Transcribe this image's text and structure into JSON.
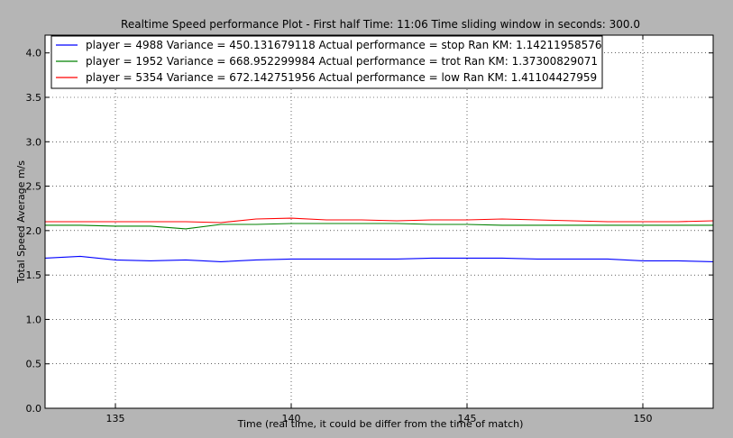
{
  "chart_data": {
    "type": "line",
    "title": "Realtime Speed performance Plot - First half Time: 11:06 Time sliding window in seconds: 300.0",
    "xlabel": "Time (real time, it could be differ from the time of match)",
    "ylabel": "Total Speed Average m/s",
    "xlim": [
      133,
      152
    ],
    "ylim": [
      0,
      4.2
    ],
    "xticks": [
      135,
      140,
      145,
      150
    ],
    "yticks": [
      0.0,
      0.5,
      1.0,
      1.5,
      2.0,
      2.5,
      3.0,
      3.5,
      4.0
    ],
    "xtick_labels": [
      "135",
      "140",
      "145",
      "150"
    ],
    "ytick_labels": [
      "0.0",
      "0.5",
      "1.0",
      "1.5",
      "2.0",
      "2.5",
      "3.0",
      "3.5",
      "4.0"
    ],
    "grid": true,
    "legend_position": "top-left",
    "series": [
      {
        "name": "player = 4988 Variance = 450.131679118 Actual performance = stop Ran KM: 1.14211958576",
        "color": "#0000ff",
        "x": [
          133,
          134,
          135,
          136,
          137,
          138,
          139,
          140,
          141,
          142,
          143,
          144,
          145,
          146,
          147,
          148,
          149,
          150,
          151,
          152
        ],
        "y": [
          1.69,
          1.71,
          1.67,
          1.66,
          1.67,
          1.65,
          1.67,
          1.68,
          1.68,
          1.68,
          1.68,
          1.69,
          1.69,
          1.69,
          1.68,
          1.68,
          1.68,
          1.66,
          1.66,
          1.65
        ]
      },
      {
        "name": "player = 1952 Variance = 668.952299984 Actual performance = trot Ran KM: 1.37300829071",
        "color": "#008000",
        "x": [
          133,
          134,
          135,
          136,
          137,
          138,
          139,
          140,
          141,
          142,
          143,
          144,
          145,
          146,
          147,
          148,
          149,
          150,
          151,
          152
        ],
        "y": [
          2.06,
          2.06,
          2.05,
          2.05,
          2.02,
          2.07,
          2.07,
          2.08,
          2.08,
          2.08,
          2.08,
          2.07,
          2.07,
          2.06,
          2.06,
          2.06,
          2.06,
          2.06,
          2.06,
          2.06
        ]
      },
      {
        "name": "player = 5354 Variance = 672.142751956 Actual performance = low Ran KM: 1.41104427959",
        "color": "#ff0000",
        "x": [
          133,
          134,
          135,
          136,
          137,
          138,
          139,
          140,
          141,
          142,
          143,
          144,
          145,
          146,
          147,
          148,
          149,
          150,
          151,
          152
        ],
        "y": [
          2.1,
          2.1,
          2.1,
          2.1,
          2.1,
          2.09,
          2.13,
          2.14,
          2.12,
          2.12,
          2.11,
          2.12,
          2.12,
          2.13,
          2.12,
          2.11,
          2.1,
          2.1,
          2.1,
          2.11
        ]
      }
    ]
  }
}
